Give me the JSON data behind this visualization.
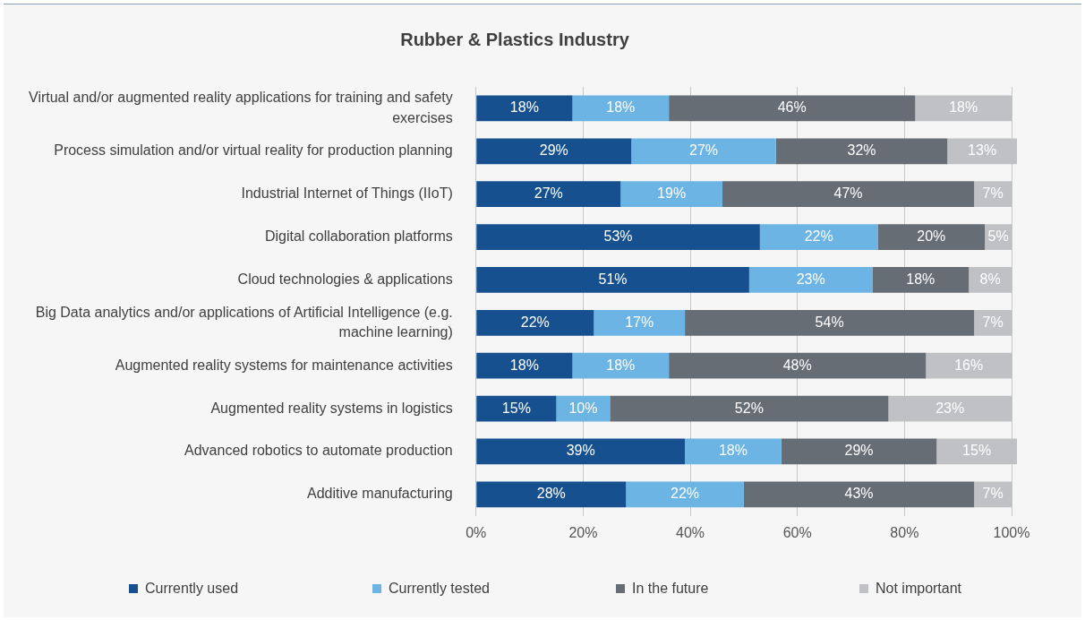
{
  "chart_data": {
    "type": "bar",
    "orientation": "horizontal",
    "stacked": true,
    "title": "Rubber & Plastics Industry",
    "categories": [
      "Virtual and/or augmented reality applications for training and safety exercises",
      "Process simulation and/or virtual reality for production planning",
      "Industrial Internet of Things (IIoT)",
      "Digital collaboration platforms",
      "Cloud technologies & applications",
      "Big Data analytics and/or applications of Artificial Intelligence (e.g. machine learning)",
      "Augmented reality systems for maintenance activities",
      "Augmented reality systems in logistics",
      "Advanced robotics to automate production",
      "Additive manufacturing"
    ],
    "series": [
      {
        "name": "Currently used",
        "color": "#17508f",
        "values": [
          18,
          29,
          27,
          53,
          51,
          22,
          18,
          15,
          39,
          28
        ],
        "value_labels": [
          "18%",
          "29%",
          "27%",
          "53%",
          "51%",
          "22%",
          "18%",
          "15%",
          "39%",
          "28%"
        ]
      },
      {
        "name": "Currently tested",
        "color": "#6cb4e4",
        "values": [
          18,
          27,
          19,
          22,
          23,
          17,
          18,
          10,
          18,
          22
        ],
        "value_labels": [
          "18%",
          "27%",
          "19%",
          "22%",
          "23%",
          "17%",
          "18%",
          "10%",
          "18%",
          "22%"
        ]
      },
      {
        "name": "In the future",
        "color": "#666d75",
        "values": [
          46,
          32,
          47,
          20,
          18,
          54,
          48,
          52,
          29,
          43
        ],
        "value_labels": [
          "46%",
          "32%",
          "47%",
          "20%",
          "18%",
          "54%",
          "48%",
          "52%",
          "29%",
          "43%"
        ]
      },
      {
        "name": "Not important",
        "color": "#bfc1c4",
        "values": [
          18,
          13,
          7,
          5,
          8,
          7,
          16,
          23,
          15,
          7
        ],
        "value_labels": [
          "18%",
          "13%",
          "7%",
          "5%",
          "8%",
          "7%",
          "16%",
          "23%",
          "15%",
          "7%"
        ]
      }
    ],
    "xlim": [
      0,
      101
    ],
    "xticks": [
      {
        "value": 0,
        "label": "0%"
      },
      {
        "value": 20,
        "label": "20%"
      },
      {
        "value": 40,
        "label": "40%"
      },
      {
        "value": 60,
        "label": "60%"
      },
      {
        "value": 80,
        "label": "80%"
      },
      {
        "value": 100,
        "label": "100%"
      }
    ],
    "grid": "x",
    "legend": "bottom"
  }
}
